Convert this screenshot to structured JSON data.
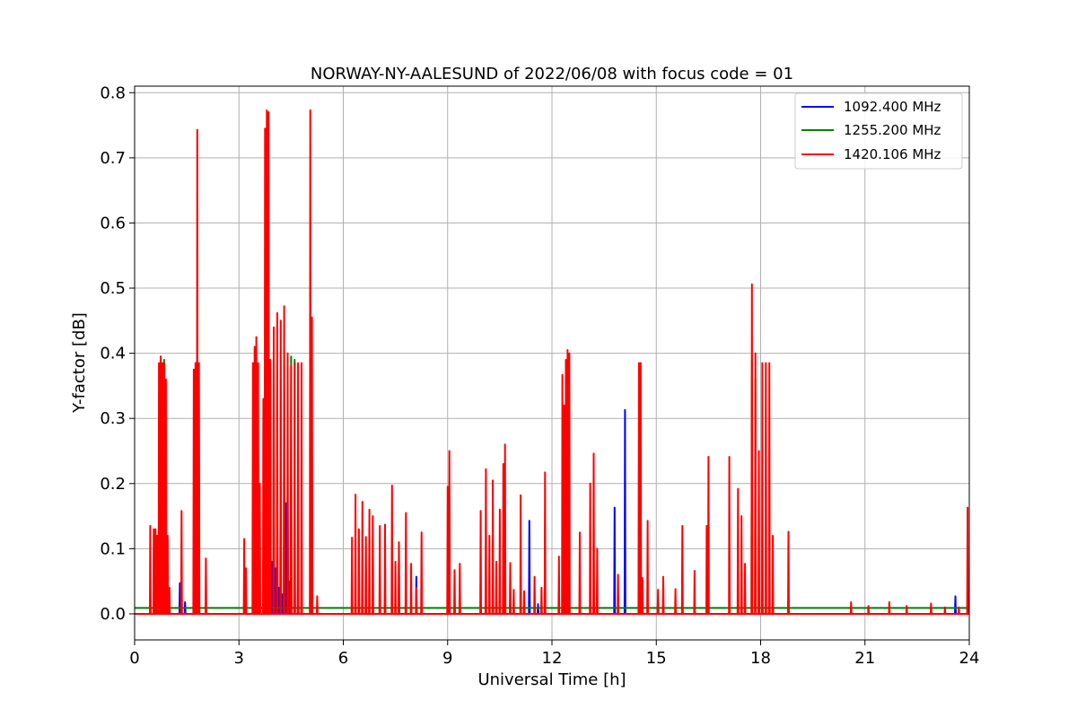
{
  "chart_data": {
    "type": "line",
    "title": "NORWAY-NY-AALESUND of 2022/06/08 with focus code = 01",
    "xlabel": "Universal Time [h]",
    "ylabel": "Y-factor [dB]",
    "xlim": [
      0,
      24
    ],
    "ylim": [
      -0.04,
      0.81
    ],
    "xticks": [
      0,
      3,
      6,
      9,
      12,
      15,
      18,
      21,
      24
    ],
    "yticks": [
      0.0,
      0.1,
      0.2,
      0.3,
      0.4,
      0.5,
      0.6,
      0.7,
      0.8
    ],
    "ytick_labels": [
      "0.0",
      "0.1",
      "0.2",
      "0.3",
      "0.4",
      "0.5",
      "0.6",
      "0.7",
      "0.8"
    ],
    "grid": true,
    "legend_position": "top-right",
    "series": [
      {
        "name": "1092.400 MHz",
        "color": "#0000ff",
        "baseline": 0.0,
        "points": [
          [
            1.3,
            0.047
          ],
          [
            1.45,
            0.018
          ],
          [
            3.7,
            0.05
          ],
          [
            3.75,
            0.12
          ],
          [
            3.8,
            0.35
          ],
          [
            3.85,
            0.3
          ],
          [
            3.9,
            0.05
          ],
          [
            3.95,
            0.08
          ],
          [
            4.0,
            0.03
          ],
          [
            4.05,
            0.07
          ],
          [
            4.1,
            0.155
          ],
          [
            4.15,
            0.04
          ],
          [
            4.2,
            0.08
          ],
          [
            4.25,
            0.03
          ],
          [
            4.35,
            0.17
          ],
          [
            4.4,
            0.18
          ],
          [
            4.45,
            0.05
          ],
          [
            4.5,
            0.04
          ],
          [
            4.6,
            0.09
          ],
          [
            4.7,
            0.08
          ],
          [
            8.1,
            0.057
          ],
          [
            11.35,
            0.143
          ],
          [
            11.6,
            0.015
          ],
          [
            12.45,
            0.04
          ],
          [
            13.8,
            0.163
          ],
          [
            14.1,
            0.313
          ],
          [
            23.6,
            0.027
          ]
        ]
      },
      {
        "name": "1255.200 MHz",
        "color": "#008000",
        "baseline": 0.009,
        "points": [
          [
            0.75,
            0.395
          ],
          [
            0.85,
            0.39
          ],
          [
            3.9,
            0.38
          ],
          [
            4.0,
            0.37
          ],
          [
            4.1,
            0.385
          ],
          [
            4.2,
            0.36
          ],
          [
            4.3,
            0.38
          ],
          [
            4.4,
            0.12
          ],
          [
            4.5,
            0.395
          ],
          [
            4.6,
            0.39
          ],
          [
            12.45,
            0.385
          ],
          [
            14.55,
            0.055
          ],
          [
            17.75,
            0.39
          ],
          [
            17.85,
            0.36
          ]
        ]
      },
      {
        "name": "1420.106 MHz",
        "color": "#ff0000",
        "baseline": 0.0,
        "points": [
          [
            0.45,
            0.135
          ],
          [
            0.55,
            0.13
          ],
          [
            0.6,
            0.13
          ],
          [
            0.65,
            0.12
          ],
          [
            0.7,
            0.385
          ],
          [
            0.75,
            0.395
          ],
          [
            0.8,
            0.385
          ],
          [
            0.85,
            0.385
          ],
          [
            0.9,
            0.36
          ],
          [
            0.95,
            0.12
          ],
          [
            1.0,
            0.04
          ],
          [
            1.35,
            0.158
          ],
          [
            1.7,
            0.375
          ],
          [
            1.75,
            0.385
          ],
          [
            1.8,
            0.743
          ],
          [
            1.85,
            0.385
          ],
          [
            2.05,
            0.085
          ],
          [
            3.15,
            0.115
          ],
          [
            3.2,
            0.07
          ],
          [
            3.4,
            0.385
          ],
          [
            3.45,
            0.41
          ],
          [
            3.5,
            0.425
          ],
          [
            3.55,
            0.385
          ],
          [
            3.6,
            0.2
          ],
          [
            3.7,
            0.33
          ],
          [
            3.75,
            0.745
          ],
          [
            3.8,
            0.773
          ],
          [
            3.85,
            0.77
          ],
          [
            3.9,
            0.39
          ],
          [
            4.0,
            0.44
          ],
          [
            4.1,
            0.462
          ],
          [
            4.2,
            0.45
          ],
          [
            4.3,
            0.472
          ],
          [
            4.4,
            0.4
          ],
          [
            4.5,
            0.38
          ],
          [
            4.6,
            0.385
          ],
          [
            4.7,
            0.385
          ],
          [
            4.8,
            0.385
          ],
          [
            5.05,
            0.773
          ],
          [
            5.1,
            0.455
          ],
          [
            5.25,
            0.027
          ],
          [
            6.25,
            0.117
          ],
          [
            6.35,
            0.183
          ],
          [
            6.45,
            0.13
          ],
          [
            6.55,
            0.172
          ],
          [
            6.65,
            0.118
          ],
          [
            6.75,
            0.16
          ],
          [
            6.85,
            0.15
          ],
          [
            7.05,
            0.135
          ],
          [
            7.2,
            0.137
          ],
          [
            7.4,
            0.197
          ],
          [
            7.5,
            0.08
          ],
          [
            7.6,
            0.11
          ],
          [
            7.8,
            0.155
          ],
          [
            7.95,
            0.077
          ],
          [
            8.1,
            0.04
          ],
          [
            8.25,
            0.125
          ],
          [
            9.0,
            0.195
          ],
          [
            9.05,
            0.25
          ],
          [
            9.2,
            0.067
          ],
          [
            9.35,
            0.077
          ],
          [
            9.95,
            0.158
          ],
          [
            10.1,
            0.222
          ],
          [
            10.2,
            0.12
          ],
          [
            10.3,
            0.205
          ],
          [
            10.4,
            0.08
          ],
          [
            10.5,
            0.16
          ],
          [
            10.6,
            0.23
          ],
          [
            10.65,
            0.26
          ],
          [
            10.8,
            0.078
          ],
          [
            10.9,
            0.037
          ],
          [
            11.1,
            0.182
          ],
          [
            11.2,
            0.035
          ],
          [
            11.5,
            0.057
          ],
          [
            11.7,
            0.04
          ],
          [
            11.8,
            0.217
          ],
          [
            12.2,
            0.088
          ],
          [
            12.3,
            0.367
          ],
          [
            12.35,
            0.32
          ],
          [
            12.4,
            0.39
          ],
          [
            12.45,
            0.405
          ],
          [
            12.5,
            0.4
          ],
          [
            12.8,
            0.125
          ],
          [
            13.1,
            0.2
          ],
          [
            13.2,
            0.246
          ],
          [
            13.3,
            0.1
          ],
          [
            13.9,
            0.06
          ],
          [
            14.5,
            0.385
          ],
          [
            14.55,
            0.385
          ],
          [
            14.6,
            0.055
          ],
          [
            14.75,
            0.143
          ],
          [
            15.05,
            0.037
          ],
          [
            15.2,
            0.057
          ],
          [
            15.55,
            0.038
          ],
          [
            15.75,
            0.135
          ],
          [
            16.1,
            0.066
          ],
          [
            16.45,
            0.135
          ],
          [
            16.5,
            0.241
          ],
          [
            17.1,
            0.241
          ],
          [
            17.35,
            0.192
          ],
          [
            17.45,
            0.15
          ],
          [
            17.55,
            0.077
          ],
          [
            17.75,
            0.506
          ],
          [
            17.85,
            0.4
          ],
          [
            17.95,
            0.25
          ],
          [
            18.05,
            0.385
          ],
          [
            18.15,
            0.385
          ],
          [
            18.25,
            0.385
          ],
          [
            18.35,
            0.12
          ],
          [
            18.8,
            0.126
          ],
          [
            20.6,
            0.018
          ],
          [
            21.1,
            0.012
          ],
          [
            21.7,
            0.018
          ],
          [
            22.2,
            0.012
          ],
          [
            22.9,
            0.016
          ],
          [
            23.3,
            0.01
          ],
          [
            23.7,
            0.01
          ],
          [
            23.95,
            0.163
          ]
        ]
      }
    ]
  }
}
